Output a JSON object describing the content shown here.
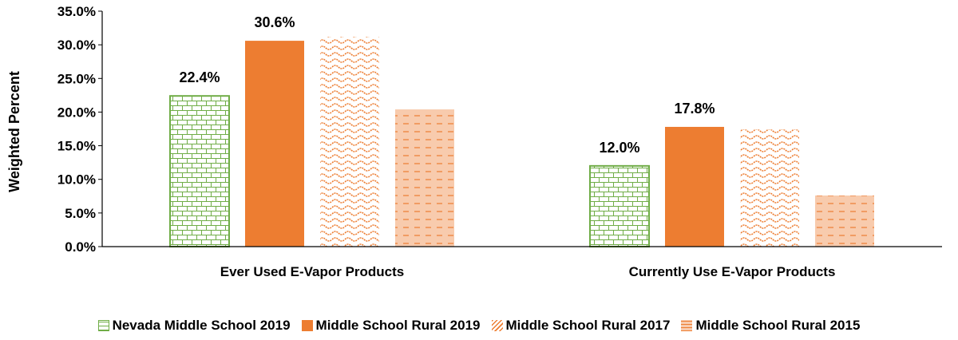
{
  "chart_data": {
    "type": "bar",
    "categories": [
      "Ever Used E-Vapor Products",
      "Currently Use E-Vapor Products"
    ],
    "series": [
      {
        "name": "Nevada Middle School 2019",
        "values": [
          22.4,
          12.0
        ],
        "color": "#70AD47",
        "pattern": "brick",
        "data_labels": [
          "22.4%",
          "12.0%"
        ]
      },
      {
        "name": "Middle School Rural 2019",
        "values": [
          30.6,
          17.8
        ],
        "color": "#ED7D31",
        "pattern": "solid",
        "data_labels": [
          "30.6%",
          "17.8%"
        ]
      },
      {
        "name": "Middle School Rural 2017",
        "values": [
          31.2,
          17.4
        ],
        "color": "#ED7D31",
        "pattern": "wave"
      },
      {
        "name": "Middle School Rural 2015",
        "values": [
          20.4,
          7.6
        ],
        "color": "#F4B183",
        "pattern": "dashed"
      }
    ],
    "ylabel": "Weighted Percent",
    "ylim": [
      0,
      35
    ],
    "yticks": [
      "0.0%",
      "5.0%",
      "10.0%",
      "15.0%",
      "20.0%",
      "25.0%",
      "30.0%",
      "35.0%"
    ],
    "grid": false,
    "legend_position": "bottom"
  }
}
